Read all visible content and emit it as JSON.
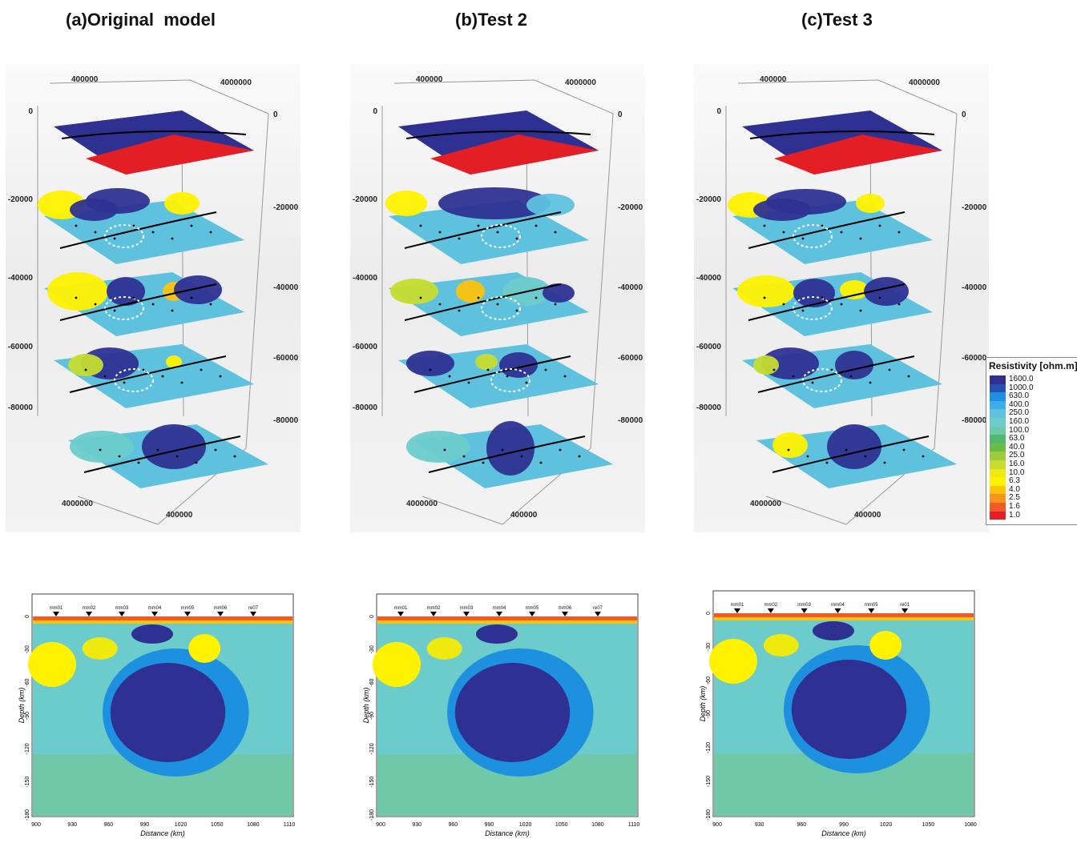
{
  "panels": [
    {
      "title": "(a)Original  model"
    },
    {
      "title": "(b)Test 2"
    },
    {
      "title": "(c)Test 3"
    }
  ],
  "axes3d": {
    "top_left": "400000",
    "top_right": "4000000",
    "bottom_left": "4000000",
    "bottom_right": "400000",
    "depths": [
      "0",
      "-20000",
      "-40000",
      "-60000",
      "-80000"
    ]
  },
  "sections": [
    {
      "stations": [
        "mm01",
        "mm02",
        "mm03",
        "mm04",
        "mm05",
        "mm06",
        "re07"
      ],
      "x_ticks": [
        "900",
        "930",
        "960",
        "990",
        "1020",
        "1050",
        "1080",
        "1110"
      ],
      "y_ticks": [
        "0",
        "-30",
        "-60",
        "-90",
        "-120",
        "-150",
        "-180"
      ]
    },
    {
      "stations": [
        "mm01",
        "mm02",
        "mm03",
        "mm04",
        "mm05",
        "mm06",
        "re07"
      ],
      "x_ticks": [
        "900",
        "930",
        "960",
        "990",
        "1020",
        "1050",
        "1080",
        "1110"
      ],
      "y_ticks": [
        "0",
        "-30",
        "-60",
        "-90",
        "-120",
        "-150",
        "-180"
      ]
    },
    {
      "stations": [
        "mm01",
        "mm02",
        "mm03",
        "mm04",
        "mm05",
        "re01"
      ],
      "x_ticks": [
        "900",
        "930",
        "960",
        "990",
        "1020",
        "1050",
        "1080"
      ],
      "y_ticks": [
        "0",
        "-30",
        "-60",
        "-90",
        "-120",
        "-150",
        "-180"
      ]
    }
  ],
  "section_axes": {
    "xlabel": "Distance (km)",
    "ylabel": "Depth (km)"
  },
  "legend": {
    "title": "Resistivity [ohm.m]",
    "items": [
      {
        "label": "1600.0",
        "color": "#2e3192"
      },
      {
        "label": "1000.0",
        "color": "#2b4fb0"
      },
      {
        "label": "630.0",
        "color": "#1e90e0"
      },
      {
        "label": "400.0",
        "color": "#3aaee8"
      },
      {
        "label": "250.0",
        "color": "#5ec2df"
      },
      {
        "label": "160.0",
        "color": "#6ccbcb"
      },
      {
        "label": "100.0",
        "color": "#6fc8a8"
      },
      {
        "label": "63.0",
        "color": "#52b86d"
      },
      {
        "label": "40.0",
        "color": "#69bd45"
      },
      {
        "label": "25.0",
        "color": "#9ccb3b"
      },
      {
        "label": "16.0",
        "color": "#c6dc2e"
      },
      {
        "label": "10.0",
        "color": "#eeea10"
      },
      {
        "label": "6.3",
        "color": "#fff200"
      },
      {
        "label": "4.0",
        "color": "#fcc30f"
      },
      {
        "label": "2.5",
        "color": "#f7941d"
      },
      {
        "label": "1.6",
        "color": "#f15a24"
      },
      {
        "label": "1.0",
        "color": "#e31e24"
      }
    ]
  }
}
